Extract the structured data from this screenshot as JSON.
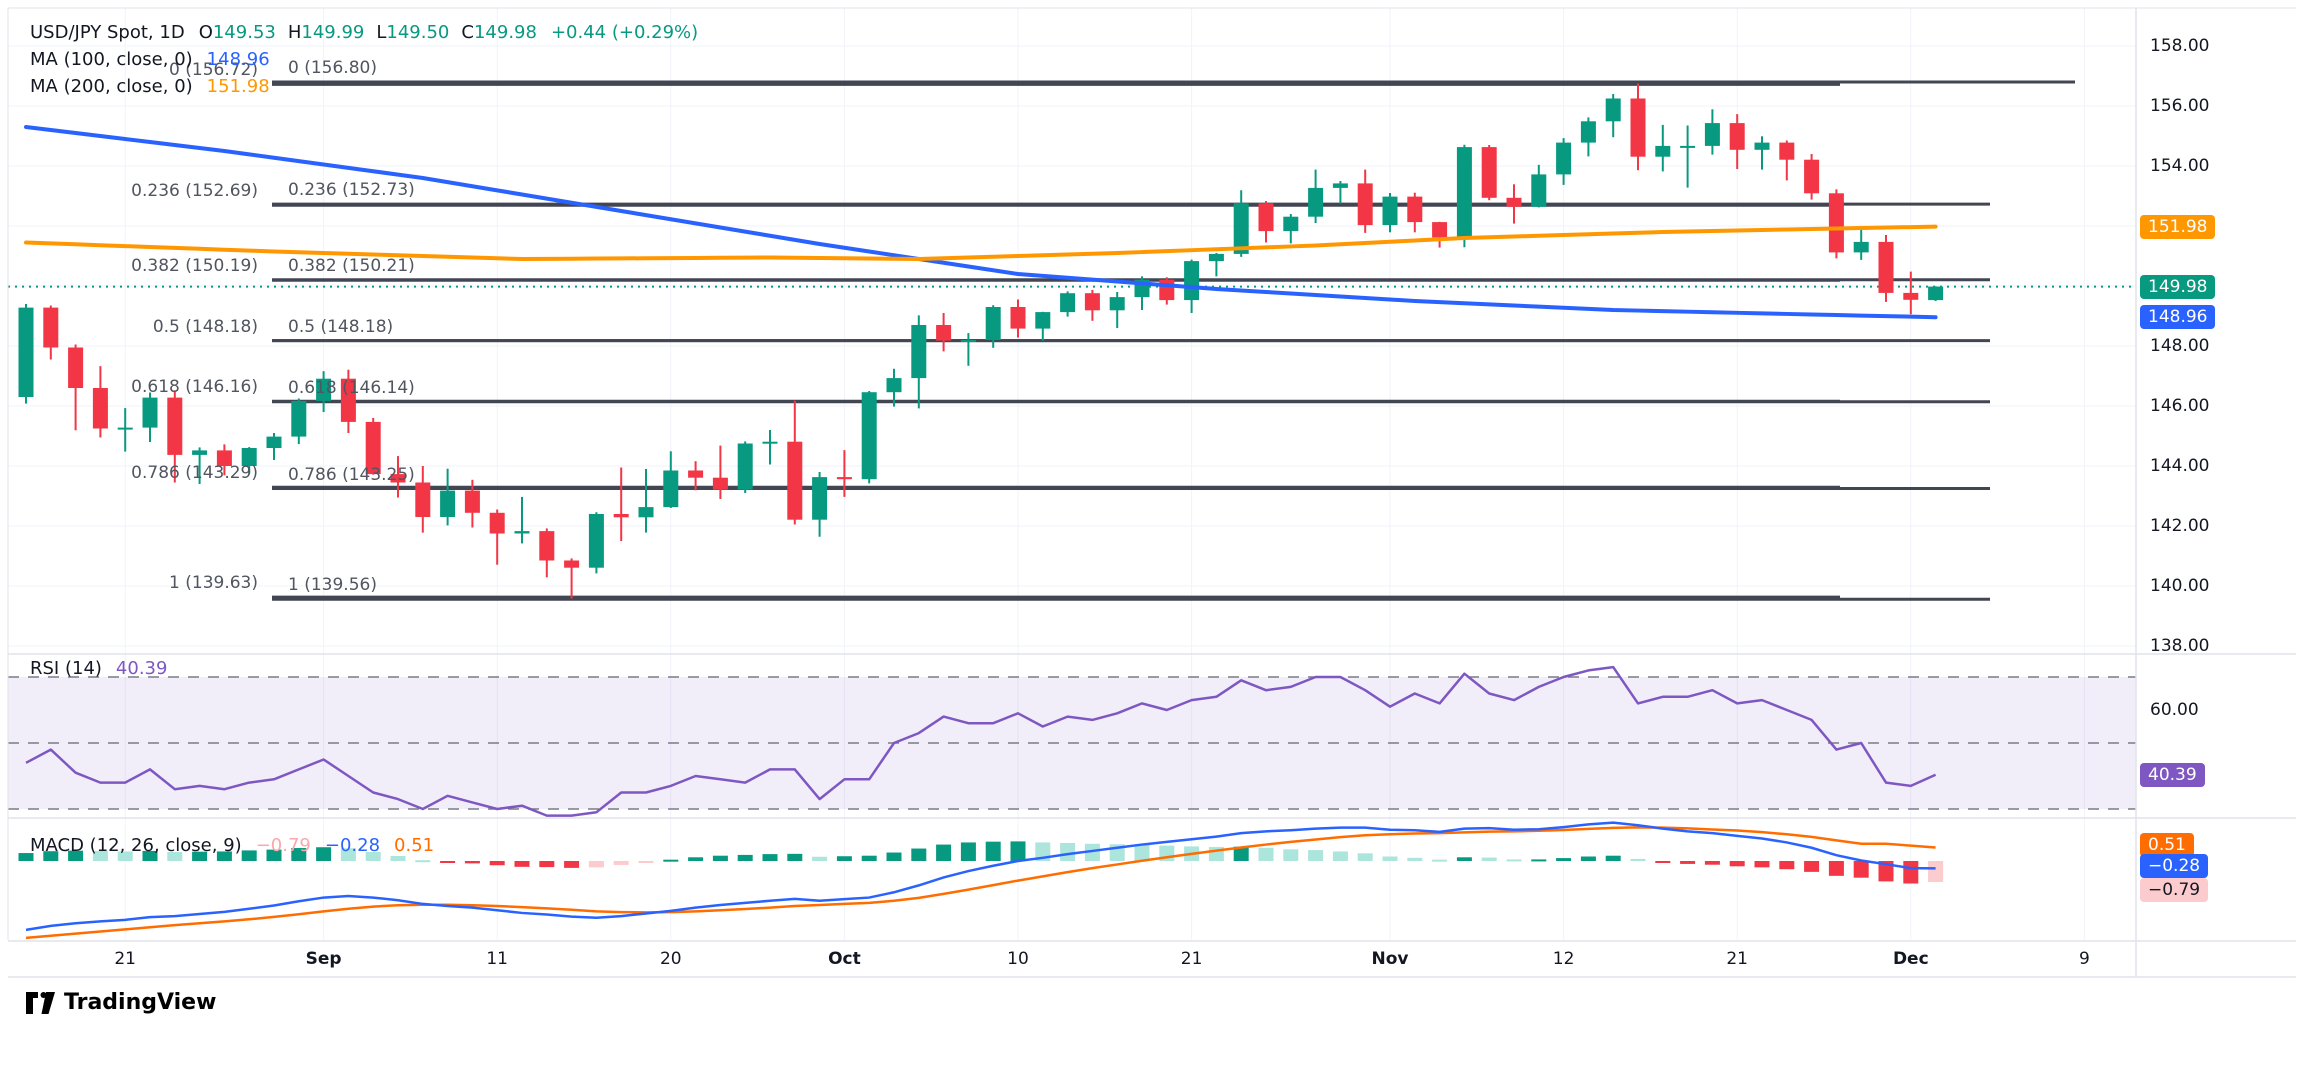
{
  "colors": {
    "up": "#089981",
    "down": "#F23645",
    "ma100": "#2962FF",
    "ma200": "#FF9800",
    "macd_line": "#2962FF",
    "signal_line": "#FF6D00",
    "hist_up": "#089981",
    "hist_up_weak": "#ACE5DC",
    "hist_down": "#F23645",
    "hist_down_weak": "#FCCBCD",
    "rsi": "#7E57C2",
    "fib_line": "#424653",
    "grid": "#F0F3FA",
    "separator": "#E0E3EB",
    "dotted_price": "#089981",
    "badge_pink_text": "#131722"
  },
  "header": {
    "title": "USD/JPY Spot, 1D",
    "ohlc": [
      {
        "k": "O",
        "v": "149.53"
      },
      {
        "k": "H",
        "v": "149.99"
      },
      {
        "k": "L",
        "v": "149.50"
      },
      {
        "k": "C",
        "v": "149.98"
      }
    ],
    "change": "+0.44 (+0.29%)"
  },
  "ma100": {
    "label": "MA (100, close, 0)",
    "value": "148.96"
  },
  "ma200": {
    "label": "MA (200, close, 0)",
    "value": "151.98"
  },
  "rsi_legend": {
    "label": "RSI (14)",
    "value": "40.39"
  },
  "macd_legend": {
    "label": "MACD (12, 26, close, 9)",
    "hist": "−0.79",
    "macd": "−0.28",
    "signal": "0.51"
  },
  "price_axis": {
    "labels": [
      {
        "t": "158.00",
        "p": 158
      },
      {
        "t": "156.00",
        "p": 156
      },
      {
        "t": "154.00",
        "p": 154
      },
      {
        "t": "148.00",
        "p": 148
      },
      {
        "t": "146.00",
        "p": 146
      },
      {
        "t": "144.00",
        "p": 144
      },
      {
        "t": "142.00",
        "p": 142
      },
      {
        "t": "140.00",
        "p": 140
      },
      {
        "t": "138.00",
        "p": 138
      }
    ],
    "badges": [
      {
        "t": "151.98",
        "bg": "#FF9800",
        "p": 151.98
      },
      {
        "t": "149.98",
        "bg": "#089981",
        "p": 149.98
      },
      {
        "t": "148.96",
        "bg": "#2962FF",
        "p": 148.96
      }
    ]
  },
  "rsi_axis": {
    "label": {
      "t": "60.00",
      "v": 60
    },
    "badge": {
      "t": "40.39",
      "v": 40.39,
      "bg": "#7E57C2"
    }
  },
  "macd_axis": {
    "badges": [
      {
        "t": "0.51",
        "bg": "#FF6D00",
        "v": 0.51,
        "white": true
      },
      {
        "t": "−0.28",
        "bg": "#2962FF",
        "v": -0.28,
        "white": true
      },
      {
        "t": "−0.79",
        "bg": "#FCCBCD",
        "v": -0.79,
        "white": false
      }
    ]
  },
  "time_axis": {
    "ticks": [
      {
        "label": "21",
        "i": 4,
        "bold": false
      },
      {
        "label": "Sep",
        "i": 12,
        "bold": true
      },
      {
        "label": "11",
        "i": 19,
        "bold": false
      },
      {
        "label": "20",
        "i": 26,
        "bold": false
      },
      {
        "label": "Oct",
        "i": 33,
        "bold": true
      },
      {
        "label": "10",
        "i": 40,
        "bold": false
      },
      {
        "label": "21",
        "i": 47,
        "bold": false
      },
      {
        "label": "Nov",
        "i": 55,
        "bold": true
      },
      {
        "label": "12",
        "i": 62,
        "bold": false
      },
      {
        "label": "21",
        "i": 69,
        "bold": false
      },
      {
        "label": "Dec",
        "i": 76,
        "bold": true
      },
      {
        "label": "9",
        "i": 83,
        "bold": false
      }
    ]
  },
  "fib_a": {
    "levels": [
      {
        "label": "0 (156.72)",
        "price": 156.72
      },
      {
        "label": "0.236 (152.69)",
        "price": 152.69
      },
      {
        "label": "0.382 (150.19)",
        "price": 150.19
      },
      {
        "label": "0.5 (148.18)",
        "price": 148.18
      },
      {
        "label": "0.618 (146.16)",
        "price": 146.16
      },
      {
        "label": "0.786 (143.29)",
        "price": 143.29
      },
      {
        "label": "1 (139.63)",
        "price": 139.63
      }
    ]
  },
  "fib_b": {
    "levels": [
      {
        "label": "0 (156.80)",
        "price": 156.8
      },
      {
        "label": "0.236 (152.73)",
        "price": 152.73
      },
      {
        "label": "0.382 (150.21)",
        "price": 150.21
      },
      {
        "label": "0.5 (148.18)",
        "price": 148.18
      },
      {
        "label": "0.618 (146.14)",
        "price": 146.14
      },
      {
        "label": "0.786 (143.25)",
        "price": 143.25
      },
      {
        "label": "1 (139.56)",
        "price": 139.56
      }
    ]
  },
  "logo": {
    "text": "TradingView"
  },
  "chart_data": [
    {
      "type": "candlestick",
      "title": "USD/JPY Spot, 1D",
      "last_price": 149.98,
      "ylim": [
        137.8,
        158.4
      ],
      "x_ticks": [
        "21",
        "Sep",
        "11",
        "20",
        "Oct",
        "10",
        "21",
        "Nov",
        "12",
        "21",
        "Dec",
        "9"
      ],
      "ohlc": [
        [
          146.3,
          149.4,
          146.08,
          149.28
        ],
        [
          149.28,
          149.35,
          147.55,
          147.95
        ],
        [
          147.95,
          148.05,
          145.19,
          146.6
        ],
        [
          146.6,
          147.33,
          144.95,
          145.25
        ],
        [
          145.25,
          145.93,
          144.48,
          145.28
        ],
        [
          145.28,
          146.45,
          144.8,
          146.28
        ],
        [
          146.28,
          146.52,
          143.45,
          144.37
        ],
        [
          144.37,
          144.62,
          143.4,
          144.52
        ],
        [
          144.52,
          144.72,
          143.69,
          144.0
        ],
        [
          144.0,
          144.63,
          143.75,
          144.6
        ],
        [
          144.6,
          145.1,
          144.2,
          144.98
        ],
        [
          144.98,
          146.25,
          144.73,
          146.17
        ],
        [
          146.17,
          147.16,
          145.8,
          146.91
        ],
        [
          146.91,
          147.21,
          145.1,
          145.47
        ],
        [
          145.47,
          145.6,
          143.71,
          143.73
        ],
        [
          143.73,
          144.33,
          142.95,
          143.45
        ],
        [
          143.45,
          144.0,
          141.78,
          142.3
        ],
        [
          142.3,
          143.91,
          142.02,
          143.18
        ],
        [
          143.18,
          143.54,
          141.95,
          142.44
        ],
        [
          142.44,
          142.55,
          140.71,
          141.75
        ],
        [
          141.75,
          142.97,
          141.42,
          141.83
        ],
        [
          141.83,
          141.92,
          140.29,
          140.85
        ],
        [
          140.85,
          140.92,
          139.58,
          140.61
        ],
        [
          140.61,
          142.46,
          140.42,
          142.4
        ],
        [
          142.4,
          143.95,
          141.5,
          142.29
        ],
        [
          142.29,
          143.9,
          141.78,
          142.63
        ],
        [
          142.63,
          144.49,
          142.6,
          143.85
        ],
        [
          143.85,
          144.16,
          143.19,
          143.61
        ],
        [
          143.61,
          144.68,
          142.9,
          143.21
        ],
        [
          143.21,
          144.82,
          143.1,
          144.75
        ],
        [
          144.75,
          145.2,
          144.05,
          144.81
        ],
        [
          144.81,
          146.18,
          142.05,
          142.21
        ],
        [
          142.21,
          143.8,
          141.64,
          143.63
        ],
        [
          143.63,
          144.53,
          142.97,
          143.56
        ],
        [
          143.56,
          146.5,
          143.42,
          146.46
        ],
        [
          146.46,
          147.24,
          145.98,
          146.93
        ],
        [
          146.93,
          149.02,
          145.92,
          148.7
        ],
        [
          148.7,
          149.1,
          147.82,
          148.18
        ],
        [
          148.18,
          148.43,
          147.34,
          148.2
        ],
        [
          148.2,
          149.36,
          147.94,
          149.3
        ],
        [
          149.3,
          149.55,
          148.28,
          148.58
        ],
        [
          148.58,
          149.14,
          148.17,
          149.13
        ],
        [
          149.13,
          149.82,
          148.98,
          149.76
        ],
        [
          149.76,
          149.87,
          148.84,
          149.19
        ],
        [
          149.19,
          149.8,
          148.6,
          149.63
        ],
        [
          149.63,
          150.32,
          149.2,
          150.21
        ],
        [
          150.21,
          150.29,
          149.38,
          149.53
        ],
        [
          149.53,
          150.88,
          149.1,
          150.83
        ],
        [
          150.83,
          151.1,
          150.32,
          151.07
        ],
        [
          151.07,
          153.19,
          150.97,
          152.76
        ],
        [
          152.76,
          152.83,
          151.45,
          151.83
        ],
        [
          151.83,
          152.4,
          151.42,
          152.31
        ],
        [
          152.31,
          153.88,
          152.1,
          153.27
        ],
        [
          153.27,
          153.5,
          152.75,
          153.42
        ],
        [
          153.42,
          153.88,
          151.77,
          152.03
        ],
        [
          152.03,
          153.1,
          151.79,
          152.98
        ],
        [
          152.98,
          153.11,
          151.79,
          152.13
        ],
        [
          152.13,
          152.14,
          151.28,
          151.62
        ],
        [
          151.62,
          154.71,
          151.29,
          154.63
        ],
        [
          154.63,
          154.7,
          152.86,
          152.94
        ],
        [
          152.94,
          153.39,
          152.08,
          152.64
        ],
        [
          152.64,
          154.04,
          152.62,
          153.72
        ],
        [
          153.72,
          154.93,
          153.37,
          154.78
        ],
        [
          154.78,
          155.62,
          154.32,
          155.49
        ],
        [
          155.49,
          156.4,
          154.96,
          156.25
        ],
        [
          156.25,
          156.75,
          153.86,
          154.31
        ],
        [
          154.31,
          155.37,
          153.82,
          154.67
        ],
        [
          154.67,
          155.35,
          153.28,
          154.67
        ],
        [
          154.67,
          155.89,
          154.38,
          155.43
        ],
        [
          155.43,
          155.73,
          153.9,
          154.54
        ],
        [
          154.54,
          154.99,
          153.88,
          154.78
        ],
        [
          154.78,
          154.85,
          153.52,
          154.21
        ],
        [
          154.21,
          154.4,
          152.88,
          153.09
        ],
        [
          153.09,
          153.22,
          150.92,
          151.12
        ],
        [
          151.12,
          151.94,
          150.87,
          151.47
        ],
        [
          151.47,
          151.7,
          149.47,
          149.77
        ],
        [
          149.77,
          150.48,
          149.06,
          149.54
        ],
        [
          149.53,
          149.99,
          149.5,
          149.98
        ]
      ],
      "overlays": [
        {
          "name": "MA100",
          "color": "#2962FF",
          "points": [
            [
              0,
              155.3
            ],
            [
              8,
              154.5
            ],
            [
              16,
              153.6
            ],
            [
              24,
              152.5
            ],
            [
              32,
              151.4
            ],
            [
              40,
              150.4
            ],
            [
              48,
              149.9
            ],
            [
              56,
              149.5
            ],
            [
              64,
              149.2
            ],
            [
              72,
              149.05
            ],
            [
              77,
              148.96
            ]
          ]
        },
        {
          "name": "MA200",
          "color": "#FF9800",
          "points": [
            [
              0,
              151.45
            ],
            [
              10,
              151.15
            ],
            [
              20,
              150.9
            ],
            [
              30,
              150.95
            ],
            [
              36,
              150.9
            ],
            [
              44,
              151.1
            ],
            [
              52,
              151.35
            ],
            [
              58,
              151.6
            ],
            [
              66,
              151.8
            ],
            [
              72,
              151.9
            ],
            [
              77,
              151.98
            ]
          ]
        }
      ],
      "fib_a": [
        156.72,
        152.69,
        150.19,
        148.18,
        146.16,
        143.29,
        139.63
      ],
      "fib_b": [
        156.8,
        152.73,
        150.21,
        148.18,
        146.14,
        143.25,
        139.56
      ]
    },
    {
      "type": "line",
      "name": "RSI (14)",
      "last": 40.39,
      "levels": [
        70,
        50,
        30
      ],
      "values": [
        44,
        48,
        41,
        38,
        38,
        42,
        36,
        37,
        36,
        38,
        39,
        42,
        45,
        40,
        35,
        33,
        30,
        34,
        32,
        30,
        31,
        28,
        28,
        29,
        35,
        35,
        37,
        40,
        39,
        38,
        42,
        42,
        33,
        39,
        39,
        50,
        53,
        58,
        56,
        56,
        59,
        55,
        58,
        57,
        59,
        62,
        60,
        63,
        64,
        69,
        66,
        67,
        70,
        70,
        66,
        61,
        65,
        62,
        71,
        65,
        63,
        67,
        70,
        72,
        73,
        62,
        64,
        64,
        66,
        62,
        63,
        60,
        57,
        48,
        50,
        38,
        37,
        40.39
      ]
    },
    {
      "type": "macd",
      "name": "MACD (12, 26, close, 9)",
      "last": {
        "hist": -0.79,
        "macd": -0.28,
        "signal": 0.51
      },
      "macd": [
        -2.6,
        -2.45,
        -2.35,
        -2.28,
        -2.22,
        -2.12,
        -2.08,
        -2.0,
        -1.92,
        -1.8,
        -1.68,
        -1.52,
        -1.38,
        -1.32,
        -1.38,
        -1.48,
        -1.62,
        -1.7,
        -1.76,
        -1.86,
        -1.96,
        -2.02,
        -2.1,
        -2.14,
        -2.08,
        -1.98,
        -1.88,
        -1.76,
        -1.66,
        -1.58,
        -1.5,
        -1.43,
        -1.5,
        -1.44,
        -1.38,
        -1.18,
        -0.92,
        -0.62,
        -0.38,
        -0.18,
        0.0,
        0.12,
        0.26,
        0.38,
        0.5,
        0.62,
        0.72,
        0.82,
        0.92,
        1.05,
        1.12,
        1.16,
        1.22,
        1.26,
        1.26,
        1.18,
        1.16,
        1.1,
        1.22,
        1.24,
        1.18,
        1.2,
        1.28,
        1.38,
        1.45,
        1.35,
        1.22,
        1.12,
        1.05,
        0.95,
        0.85,
        0.7,
        0.5,
        0.22,
        0.02,
        -0.12,
        -0.27,
        -0.28
      ],
      "signal": [
        -2.9,
        -2.82,
        -2.74,
        -2.66,
        -2.58,
        -2.5,
        -2.42,
        -2.35,
        -2.28,
        -2.2,
        -2.11,
        -2.01,
        -1.9,
        -1.8,
        -1.72,
        -1.67,
        -1.65,
        -1.65,
        -1.67,
        -1.7,
        -1.74,
        -1.79,
        -1.84,
        -1.9,
        -1.93,
        -1.94,
        -1.93,
        -1.9,
        -1.86,
        -1.81,
        -1.76,
        -1.7,
        -1.66,
        -1.62,
        -1.58,
        -1.5,
        -1.39,
        -1.24,
        -1.08,
        -0.91,
        -0.74,
        -0.58,
        -0.42,
        -0.27,
        -0.13,
        0.01,
        0.14,
        0.27,
        0.39,
        0.51,
        0.62,
        0.72,
        0.81,
        0.9,
        0.97,
        1.01,
        1.04,
        1.05,
        1.08,
        1.11,
        1.12,
        1.14,
        1.17,
        1.21,
        1.25,
        1.27,
        1.26,
        1.23,
        1.19,
        1.15,
        1.09,
        1.01,
        0.91,
        0.78,
        0.65,
        0.65,
        0.58,
        0.51
      ]
    }
  ]
}
